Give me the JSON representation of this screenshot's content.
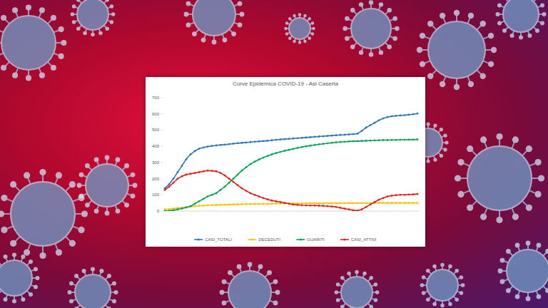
{
  "chart_data": {
    "type": "line",
    "title": "Curve Epidemica COVID-19 - Asl Caserta",
    "categories": [
      null,
      null,
      null,
      null,
      null,
      null,
      null,
      null,
      null,
      null,
      null,
      null,
      null,
      null,
      null,
      null,
      null,
      null,
      null,
      null,
      null,
      null,
      null,
      null,
      null,
      null,
      null,
      null,
      null,
      null,
      null,
      null,
      null,
      null,
      null,
      null,
      null,
      null,
      null,
      null,
      null,
      null,
      null,
      null,
      null,
      null,
      null,
      null,
      null,
      null,
      null,
      null,
      null,
      null,
      null,
      null,
      null,
      null,
      null,
      null
    ],
    "series": [
      {
        "name": "CASI_TOTALI",
        "color": "#2e75b6",
        "marker": "circle",
        "values": [
          140,
          165,
          200,
          240,
          280,
          320,
          350,
          370,
          385,
          392,
          398,
          402,
          405,
          408,
          410,
          413,
          416,
          419,
          421,
          423,
          426,
          428,
          430,
          432,
          434,
          437,
          440,
          442,
          444,
          446,
          448,
          450,
          452,
          454,
          456,
          458,
          460,
          462,
          464,
          466,
          468,
          470,
          471,
          473,
          475,
          478,
          495,
          515,
          530,
          545,
          560,
          572,
          580,
          585,
          588,
          590,
          592,
          595,
          598,
          602
        ]
      },
      {
        "name": "DECEDUTI",
        "color": "#ffc000",
        "marker": "circle",
        "values": [
          10,
          12,
          15,
          18,
          21,
          24,
          27,
          30,
          32,
          34,
          35,
          36,
          37,
          38,
          39,
          40,
          41,
          42,
          42,
          43,
          43,
          44,
          44,
          45,
          45,
          45,
          46,
          46,
          46,
          47,
          47,
          47,
          47,
          48,
          48,
          48,
          48,
          48,
          49,
          49,
          49,
          49,
          49,
          49,
          49,
          49,
          49,
          49,
          49,
          50,
          50,
          50,
          50,
          50,
          50,
          50,
          50,
          50,
          50,
          50
        ]
      },
      {
        "name": "GUARITI",
        "color": "#00a651",
        "marker": "circle",
        "values": [
          0,
          2,
          5,
          10,
          15,
          22,
          30,
          45,
          60,
          75,
          90,
          100,
          110,
          130,
          150,
          175,
          200,
          225,
          250,
          270,
          290,
          305,
          318,
          330,
          340,
          350,
          358,
          365,
          372,
          378,
          384,
          390,
          395,
          400,
          404,
          408,
          412,
          415,
          418,
          421,
          424,
          426,
          428,
          430,
          431,
          432,
          433,
          434,
          435,
          436,
          437,
          438,
          438,
          439,
          439,
          440,
          440,
          441,
          441,
          442
        ]
      },
      {
        "name": "CASI_ATTIVI",
        "color": "#e0201b",
        "marker": "circle",
        "values": [
          130,
          150,
          175,
          200,
          215,
          225,
          230,
          235,
          240,
          245,
          250,
          248,
          245,
          235,
          220,
          200,
          180,
          160,
          140,
          125,
          110,
          100,
          90,
          80,
          72,
          65,
          60,
          55,
          50,
          45,
          40,
          38,
          36,
          35,
          34,
          34,
          33,
          32,
          30,
          28,
          25,
          20,
          15,
          10,
          5,
          3,
          10,
          25,
          40,
          55,
          70,
          80,
          90,
          95,
          98,
          100,
          100,
          102,
          103,
          105
        ]
      }
    ],
    "ylim": [
      0,
      700
    ],
    "yticks": [
      0,
      100,
      200,
      300,
      400,
      500,
      600,
      700
    ],
    "grid": false,
    "legend": "bottom",
    "tick_labels": "y"
  }
}
